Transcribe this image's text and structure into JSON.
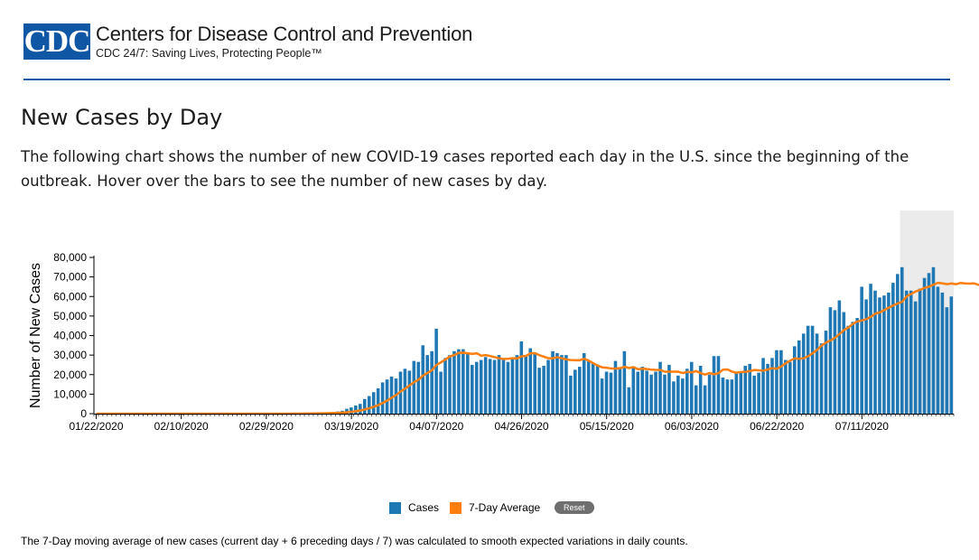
{
  "header": {
    "logo_text": "CDC",
    "org_name": "Centers for Disease Control and Prevention",
    "tagline": "CDC 24/7: Saving Lives, Protecting People™",
    "brand_color": "#0f56a5"
  },
  "page": {
    "title": "New Cases by Day",
    "description": "The following chart shows the number of new COVID-19 cases reported each day in the U.S. since the beginning of the outbreak. Hover over the bars to see the number of new cases by day.",
    "footnote": "The 7-Day moving average of new cases (current day + 6 preceding days / 7) was calculated to smooth expected variations in daily counts."
  },
  "legend": {
    "cases_label": "Cases",
    "avg_label": "7-Day Average",
    "reset_label": "Reset"
  },
  "chart_data": {
    "type": "bar",
    "ylabel": "Number of New Cases",
    "ylim": [
      0,
      80000
    ],
    "y_ticks": [
      "0",
      "10,000",
      "20,000",
      "30,000",
      "40,000",
      "50,000",
      "60,000",
      "70,000",
      "80,000"
    ],
    "x_tick_labels": [
      "01/22/2020",
      "02/10/2020",
      "02/29/2020",
      "03/19/2020",
      "04/07/2020",
      "04/26/2020",
      "05/15/2020",
      "06/03/2020",
      "06/22/2020",
      "07/11/2020"
    ],
    "x_tick_day_index": [
      0,
      19,
      38,
      57,
      76,
      95,
      114,
      133,
      152,
      171
    ],
    "start_date": "2020-01-22",
    "shaded_recent_days": 12,
    "colors": {
      "cases": "#1f77b4",
      "average": "#ff7f0e",
      "shade": "#ebebeb"
    },
    "series": [
      {
        "name": "Cases",
        "values": [
          0,
          0,
          0,
          0,
          0,
          0,
          0,
          0,
          0,
          0,
          0,
          0,
          0,
          0,
          0,
          0,
          0,
          0,
          0,
          0,
          0,
          0,
          0,
          0,
          0,
          0,
          0,
          0,
          0,
          0,
          0,
          0,
          0,
          0,
          0,
          0,
          0,
          0,
          0,
          0,
          0,
          0,
          50,
          80,
          100,
          120,
          150,
          200,
          250,
          300,
          400,
          500,
          700,
          900,
          1100,
          1500,
          2500,
          3200,
          4200,
          5000,
          7500,
          9000,
          11000,
          13000,
          16000,
          17500,
          19000,
          18000,
          21500,
          23000,
          22000,
          27000,
          26500,
          35000,
          30000,
          32000,
          43500,
          21500,
          28500,
          30000,
          32000,
          33000,
          33000,
          31000,
          25000,
          26500,
          27500,
          29000,
          28000,
          27500,
          30000,
          28500,
          26500,
          28500,
          30000,
          37000,
          30000,
          33500,
          31000,
          23500,
          24500,
          27500,
          32000,
          31000,
          30000,
          30000,
          19500,
          22500,
          24000,
          31000,
          27000,
          26000,
          24500,
          18000,
          21500,
          21000,
          27000,
          23500,
          32000,
          13500,
          24000,
          21500,
          24000,
          22000,
          20000,
          21500,
          26500,
          20000,
          25000,
          16500,
          19500,
          18000,
          23000,
          26500,
          14500,
          24500,
          14500,
          20000,
          29500,
          29500,
          18500,
          17500,
          17500,
          21000,
          21500,
          24500,
          25500,
          19500,
          21000,
          28500,
          25500,
          28500,
          32500,
          32500,
          27500,
          26500,
          34500,
          37500,
          41000,
          45000,
          45000,
          41000,
          36000,
          42500,
          54500,
          53000,
          58000,
          52000,
          45000,
          47000,
          49000,
          65000,
          58500,
          66500,
          63000,
          59500,
          60500,
          62000,
          67000,
          71500,
          75000,
          63000,
          63000,
          57500,
          64000,
          69500,
          72000,
          75000,
          65000,
          62000,
          54500,
          60000
        ]
      },
      {
        "name": "7-Day Average",
        "values": [
          0,
          0,
          0,
          0,
          0,
          0,
          0,
          0,
          0,
          0,
          0,
          0,
          0,
          0,
          0,
          0,
          0,
          0,
          0,
          0,
          0,
          0,
          0,
          0,
          0,
          0,
          0,
          0,
          0,
          0,
          0,
          0,
          0,
          0,
          0,
          0,
          0,
          0,
          0,
          0,
          0,
          0,
          7,
          18,
          33,
          50,
          71,
          100,
          136,
          160,
          189,
          221,
          271,
          336,
          414,
          529,
          714,
          957,
          1271,
          1629,
          2171,
          2786,
          3543,
          4371,
          5500,
          6729,
          8171,
          9571,
          11357,
          12867,
          14500,
          16143,
          17429,
          19500,
          20857,
          22286,
          24929,
          26286,
          27786,
          29286,
          30000,
          31143,
          31214,
          30929,
          30571,
          30929,
          29643,
          30000,
          29500,
          28929,
          28357,
          28000,
          28143,
          28357,
          28286,
          29357,
          29571,
          30929,
          31000,
          29929,
          29143,
          28357,
          28357,
          28929,
          28357,
          27786,
          27429,
          27357,
          27357,
          28143,
          27143,
          25857,
          24643,
          23714,
          23500,
          23143,
          23143,
          23286,
          24000,
          23357,
          23857,
          22714,
          23071,
          22857,
          22571,
          22429,
          22357,
          21500,
          21500,
          21500,
          21500,
          20786,
          21429,
          21143,
          21786,
          20786,
          20000,
          20857,
          20143,
          20786,
          22571,
          22643,
          21500,
          20929,
          21357,
          21429,
          21786,
          22357,
          22214,
          22000,
          22643,
          23286,
          23000,
          24214,
          25857,
          27143,
          28357,
          28071,
          28357,
          29429,
          30929,
          32714,
          34857,
          36429,
          37500,
          38857,
          40786,
          42786,
          44143,
          46000,
          47214,
          47714,
          48429,
          49571,
          51214,
          51857,
          53071,
          54286,
          55429,
          56429,
          57286,
          60071,
          61286,
          62571,
          63357,
          64429,
          65000,
          66071,
          67000,
          66714,
          66286,
          66643,
          66286,
          66929,
          66714,
          66571,
          66714,
          66000,
          65714,
          65000
        ]
      }
    ]
  }
}
